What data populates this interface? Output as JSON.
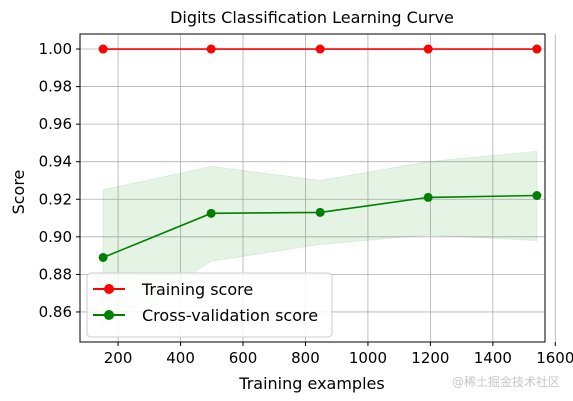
{
  "chart_data": {
    "type": "line",
    "title": "Digits Classification Learning Curve",
    "xlabel": "Training examples",
    "ylabel": "Score",
    "xlim": [
      78,
      1567
    ],
    "ylim": [
      0.844,
      1.008
    ],
    "xticks": [
      200,
      400,
      600,
      800,
      1000,
      1200,
      1400,
      1600
    ],
    "yticks": [
      0.86,
      0.88,
      0.9,
      0.92,
      0.94,
      0.96,
      0.98,
      1.0
    ],
    "xtick_labels": [
      "200",
      "400",
      "600",
      "800",
      "1000",
      "1200",
      "1400",
      "1600"
    ],
    "ytick_labels": [
      "0.86",
      "0.88",
      "0.90",
      "0.92",
      "0.94",
      "0.96",
      "0.98",
      "1.00"
    ],
    "grid": true,
    "legend_position": "lower-left",
    "x": [
      152,
      498,
      847,
      1193,
      1541
    ],
    "series": [
      {
        "name": "Training score",
        "color": "#ff0000",
        "marker": "circle",
        "values": [
          1.0,
          1.0,
          1.0,
          1.0,
          1.0
        ],
        "band_lower": [
          1.0,
          1.0,
          1.0,
          1.0,
          1.0
        ],
        "band_upper": [
          1.0,
          1.0,
          1.0,
          1.0,
          1.0
        ],
        "band_color": "#ff0000"
      },
      {
        "name": "Cross-validation score",
        "color": "#008000",
        "marker": "circle",
        "values": [
          0.889,
          0.9125,
          0.913,
          0.921,
          0.922
        ],
        "band_lower": [
          0.852,
          0.887,
          0.896,
          0.901,
          0.898
        ],
        "band_upper": [
          0.925,
          0.9375,
          0.93,
          0.94,
          0.9455
        ],
        "band_color": "#2ca02c"
      }
    ]
  },
  "watermark": "@稀土掘金技术社区"
}
